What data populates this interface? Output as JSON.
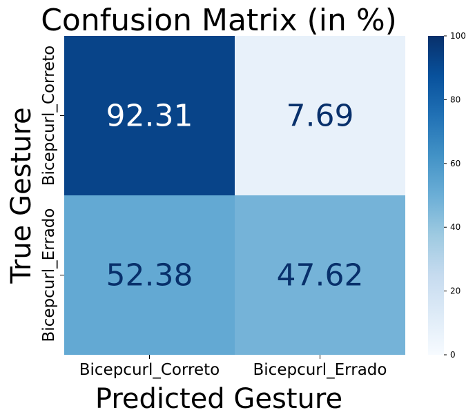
{
  "chart_data": {
    "type": "heatmap",
    "title": "Confusion Matrix (in %)",
    "xlabel": "Predicted Gesture",
    "ylabel": "True Gesture",
    "x_categories": [
      "Bicepcurl_Correto",
      "Bicepcurl_Errado"
    ],
    "y_categories": [
      "Bicepcurl_Correto",
      "Bicepcurl_Errado"
    ],
    "values": [
      [
        92.31,
        7.69
      ],
      [
        52.38,
        47.62
      ]
    ],
    "colorbar": {
      "min": 0,
      "max": 100,
      "ticks": [
        0,
        20,
        40,
        60,
        80,
        100
      ],
      "colormap": "Blues"
    },
    "text_colors": {
      "dark": "#08306b",
      "light": "#ffffff"
    }
  }
}
